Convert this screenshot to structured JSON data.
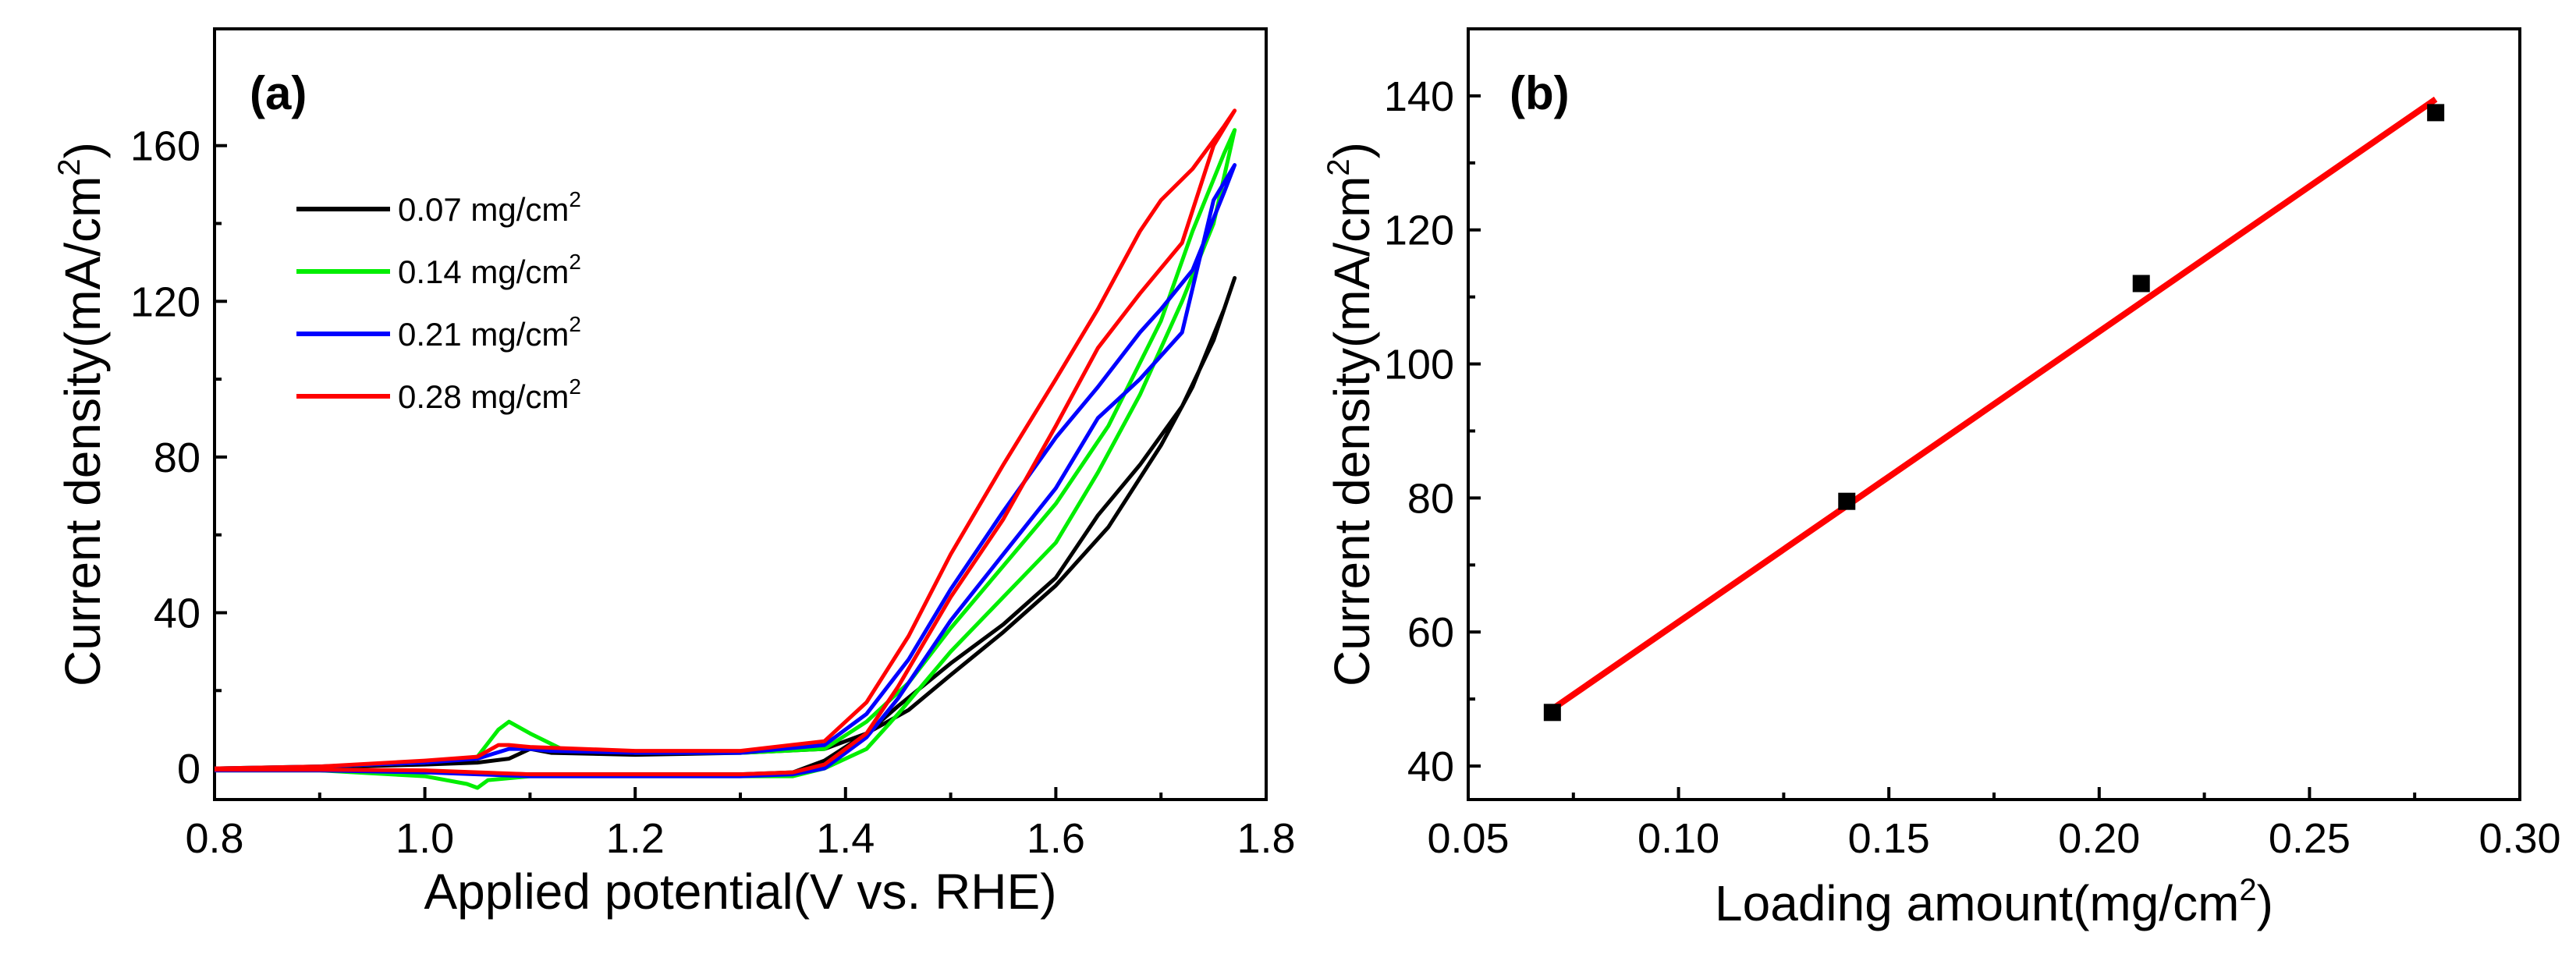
{
  "chart_data": [
    {
      "type": "line",
      "panel_label": "(a)",
      "xlabel": "Applied potential(V vs. RHE)",
      "ylabel_main": "Current density(mA/cm",
      "ylabel_sup": "2",
      "ylabel_close": ")",
      "xlim": [
        0.8,
        1.8
      ],
      "ylim": [
        -8,
        190
      ],
      "xticks": [
        0.8,
        1.0,
        1.2,
        1.4,
        1.6,
        1.8
      ],
      "xtick_labels": [
        "0.8",
        "1.0",
        "1.2",
        "1.4",
        "1.6",
        "1.8"
      ],
      "yticks": [
        0,
        40,
        80,
        120,
        160
      ],
      "ytick_labels": [
        "0",
        "40",
        "80",
        "120",
        "160"
      ],
      "legend_position": "upper-left",
      "series": [
        {
          "name": "0.07 mg/cm",
          "name_sup": "2",
          "color": "#000000",
          "points": [
            [
              0.8,
              0
            ],
            [
              0.9,
              0.3
            ],
            [
              1.0,
              1
            ],
            [
              1.05,
              1.5
            ],
            [
              1.08,
              2.5
            ],
            [
              1.1,
              5
            ],
            [
              1.12,
              4
            ],
            [
              1.2,
              3.5
            ],
            [
              1.3,
              4
            ],
            [
              1.38,
              5
            ],
            [
              1.42,
              9
            ],
            [
              1.46,
              15
            ],
            [
              1.5,
              24
            ],
            [
              1.55,
              35
            ],
            [
              1.6,
              47
            ],
            [
              1.65,
              62
            ],
            [
              1.7,
              83
            ],
            [
              1.73,
              98
            ],
            [
              1.76,
              118
            ],
            [
              1.77,
              126
            ],
            [
              1.75,
              110
            ],
            [
              1.72,
              93
            ],
            [
              1.68,
              78
            ],
            [
              1.64,
              65
            ],
            [
              1.6,
              49
            ],
            [
              1.55,
              37
            ],
            [
              1.5,
              27
            ],
            [
              1.45,
              16
            ],
            [
              1.42,
              9
            ],
            [
              1.38,
              2
            ],
            [
              1.35,
              -1
            ],
            [
              1.3,
              -1.5
            ],
            [
              1.2,
              -1.5
            ],
            [
              1.1,
              -1.5
            ],
            [
              1.05,
              -1.2
            ],
            [
              1.0,
              -0.8
            ],
            [
              0.9,
              -0.5
            ],
            [
              0.8,
              -0.5
            ]
          ]
        },
        {
          "name": "0.14 mg/cm",
          "name_sup": "2",
          "color": "#00ee00",
          "points": [
            [
              0.8,
              0
            ],
            [
              0.9,
              0.5
            ],
            [
              1.0,
              1.5
            ],
            [
              1.05,
              3
            ],
            [
              1.07,
              10
            ],
            [
              1.08,
              12
            ],
            [
              1.1,
              9
            ],
            [
              1.13,
              5
            ],
            [
              1.2,
              4
            ],
            [
              1.3,
              4
            ],
            [
              1.38,
              5
            ],
            [
              1.42,
              12
            ],
            [
              1.46,
              22
            ],
            [
              1.5,
              36
            ],
            [
              1.55,
              52
            ],
            [
              1.6,
              68
            ],
            [
              1.65,
              88
            ],
            [
              1.7,
              115
            ],
            [
              1.73,
              138
            ],
            [
              1.76,
              158
            ],
            [
              1.77,
              164
            ],
            [
              1.75,
              140
            ],
            [
              1.72,
              120
            ],
            [
              1.68,
              96
            ],
            [
              1.64,
              76
            ],
            [
              1.6,
              58
            ],
            [
              1.55,
              44
            ],
            [
              1.5,
              30
            ],
            [
              1.45,
              14
            ],
            [
              1.42,
              5
            ],
            [
              1.38,
              0
            ],
            [
              1.35,
              -2
            ],
            [
              1.3,
              -2
            ],
            [
              1.2,
              -2
            ],
            [
              1.1,
              -2
            ],
            [
              1.06,
              -3
            ],
            [
              1.05,
              -5
            ],
            [
              1.04,
              -4
            ],
            [
              1.0,
              -2
            ],
            [
              0.9,
              -0.5
            ],
            [
              0.8,
              -0.5
            ]
          ]
        },
        {
          "name": "0.21 mg/cm",
          "name_sup": "2",
          "color": "#0000ff",
          "points": [
            [
              0.8,
              0
            ],
            [
              0.9,
              0.5
            ],
            [
              1.0,
              1.5
            ],
            [
              1.05,
              2.5
            ],
            [
              1.08,
              5
            ],
            [
              1.1,
              5
            ],
            [
              1.12,
              4.5
            ],
            [
              1.2,
              4
            ],
            [
              1.3,
              4
            ],
            [
              1.38,
              6
            ],
            [
              1.42,
              14
            ],
            [
              1.46,
              28
            ],
            [
              1.5,
              46
            ],
            [
              1.55,
              66
            ],
            [
              1.6,
              85
            ],
            [
              1.64,
              98
            ],
            [
              1.68,
              112
            ],
            [
              1.7,
              118
            ],
            [
              1.73,
              128
            ],
            [
              1.76,
              148
            ],
            [
              1.77,
              155
            ],
            [
              1.75,
              146
            ],
            [
              1.72,
              112
            ],
            [
              1.68,
              100
            ],
            [
              1.64,
              90
            ],
            [
              1.6,
              72
            ],
            [
              1.55,
              55
            ],
            [
              1.5,
              38
            ],
            [
              1.45,
              18
            ],
            [
              1.42,
              8
            ],
            [
              1.38,
              0
            ],
            [
              1.35,
              -1.5
            ],
            [
              1.3,
              -2
            ],
            [
              1.2,
              -2
            ],
            [
              1.1,
              -2
            ],
            [
              1.05,
              -1.5
            ],
            [
              1.0,
              -1
            ],
            [
              0.9,
              -0.5
            ],
            [
              0.8,
              -0.5
            ]
          ]
        },
        {
          "name": "0.28 mg/cm",
          "name_sup": "2",
          "color": "#ff0000",
          "points": [
            [
              0.8,
              0
            ],
            [
              0.9,
              0.5
            ],
            [
              1.0,
              2
            ],
            [
              1.05,
              3
            ],
            [
              1.07,
              6
            ],
            [
              1.08,
              6
            ],
            [
              1.1,
              5.5
            ],
            [
              1.2,
              4.5
            ],
            [
              1.3,
              4.5
            ],
            [
              1.38,
              7
            ],
            [
              1.42,
              17
            ],
            [
              1.46,
              34
            ],
            [
              1.5,
              55
            ],
            [
              1.55,
              78
            ],
            [
              1.6,
              100
            ],
            [
              1.64,
              118
            ],
            [
              1.68,
              138
            ],
            [
              1.7,
              146
            ],
            [
              1.73,
              154
            ],
            [
              1.76,
              165
            ],
            [
              1.77,
              169
            ],
            [
              1.75,
              160
            ],
            [
              1.72,
              135
            ],
            [
              1.68,
              122
            ],
            [
              1.64,
              108
            ],
            [
              1.6,
              88
            ],
            [
              1.55,
              64
            ],
            [
              1.5,
              44
            ],
            [
              1.45,
              21
            ],
            [
              1.42,
              9
            ],
            [
              1.38,
              1
            ],
            [
              1.35,
              -1
            ],
            [
              1.3,
              -1.5
            ],
            [
              1.2,
              -1.5
            ],
            [
              1.1,
              -1.5
            ],
            [
              1.05,
              -1
            ],
            [
              1.0,
              -0.5
            ],
            [
              0.9,
              -0.3
            ],
            [
              0.8,
              -0.3
            ]
          ]
        }
      ]
    },
    {
      "type": "scatter",
      "panel_label": "(b)",
      "xlabel_main": "Loading amount(mg/cm",
      "xlabel_sup": "2",
      "xlabel_close": ")",
      "ylabel_main": "Current density(mA/cm",
      "ylabel_sup": "2",
      "ylabel_close": ")",
      "xlim": [
        0.05,
        0.3
      ],
      "ylim": [
        35,
        150
      ],
      "xticks": [
        0.05,
        0.1,
        0.15,
        0.2,
        0.25,
        0.3
      ],
      "xtick_labels": [
        "0.05",
        "0.10",
        "0.15",
        "0.20",
        "0.25",
        "0.30"
      ],
      "yticks": [
        40,
        60,
        80,
        100,
        120,
        140
      ],
      "ytick_labels": [
        "40",
        "60",
        "80",
        "100",
        "120",
        "140"
      ],
      "points": [
        [
          0.07,
          48
        ],
        [
          0.14,
          79.5
        ],
        [
          0.21,
          112
        ],
        [
          0.28,
          137.5
        ]
      ],
      "point_color": "#000000",
      "fit_line": {
        "x": [
          0.07,
          0.28
        ],
        "y": [
          48.5,
          139.5
        ],
        "color": "#ff0000"
      }
    }
  ]
}
